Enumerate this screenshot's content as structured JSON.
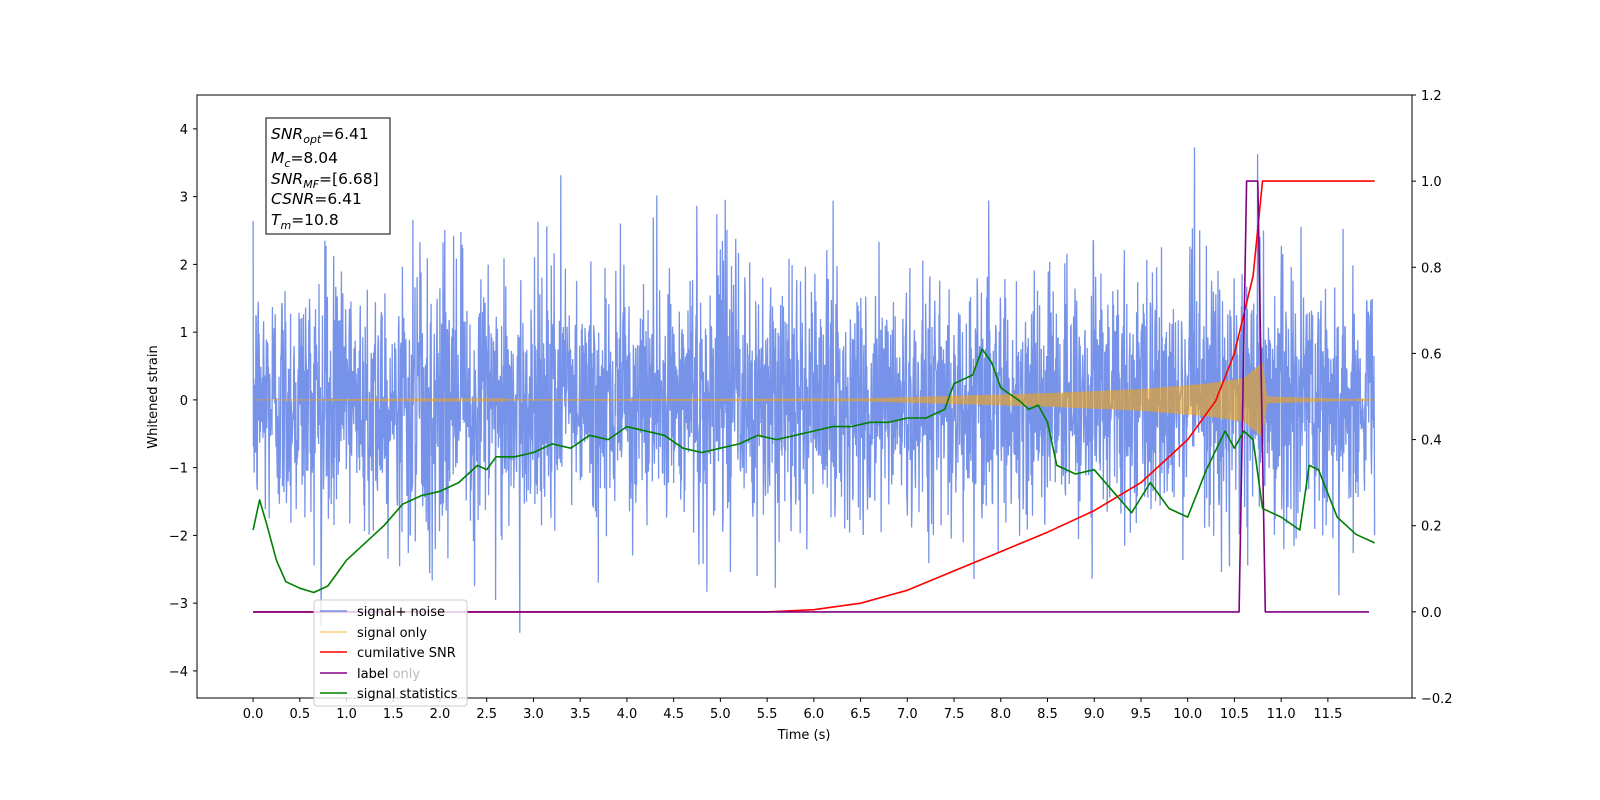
{
  "chart_data": {
    "type": "line",
    "xlabel": "Time (s)",
    "ylabel": "Whitened strain",
    "xlim": [
      -0.6,
      12.4
    ],
    "ylim": [
      -4.4,
      4.5
    ],
    "y2lim": [
      -0.2,
      1.2
    ],
    "x_ticks": [
      0.0,
      0.5,
      1.0,
      1.5,
      2.0,
      2.5,
      3.0,
      3.5,
      4.0,
      4.5,
      5.0,
      5.5,
      6.0,
      6.5,
      7.0,
      7.5,
      8.0,
      8.5,
      9.0,
      9.5,
      10.0,
      10.5,
      11.0,
      11.5
    ],
    "x_tick_labels": [
      "0.0",
      "0.5",
      "1.0",
      "1.5",
      "2.0",
      "2.5",
      "3.0",
      "3.5",
      "4.0",
      "4.5",
      "5.0",
      "5.5",
      "6.0",
      "6.5",
      "7.0",
      "7.5",
      "8.0",
      "8.5",
      "9.0",
      "9.5",
      "10.0",
      "10.5",
      "11.0",
      "11.5"
    ],
    "y_ticks": [
      -4,
      -3,
      -2,
      -1,
      0,
      1,
      2,
      3,
      4
    ],
    "y_tick_labels": [
      "−4",
      "−3",
      "−2",
      "−1",
      "0",
      "1",
      "2",
      "3",
      "4"
    ],
    "y2_ticks": [
      -0.2,
      0.0,
      0.2,
      0.4,
      0.6,
      0.8,
      1.0,
      1.2
    ],
    "y2_tick_labels": [
      "−0.2",
      "0.0",
      "0.2",
      "0.4",
      "0.6",
      "0.8",
      "1.0",
      "1.2"
    ],
    "grid": false,
    "legend_position": "bottom-left",
    "annotation_box": {
      "position": "top-left",
      "lines": [
        {
          "sym": "SNR",
          "sub": "opt",
          "rest": "=6.41"
        },
        {
          "sym": "M",
          "sub": "c",
          "rest": "=8.04"
        },
        {
          "sym": "SNR",
          "sub": "MF",
          "rest": "=[6.68]"
        },
        {
          "sym": "CSNR",
          "sub": "",
          "rest": "=6.41"
        },
        {
          "sym": "T",
          "sub": "m",
          "rest": "=10.8"
        }
      ]
    },
    "series": [
      {
        "name": "signal+ noise",
        "axis": "left",
        "color": "#4169e1",
        "style": "noise-envelope",
        "x_range": [
          0.0,
          12.0
        ],
        "approx_range": [
          -3.6,
          4.1
        ],
        "typical_std": 0.95
      },
      {
        "name": "signal only",
        "axis": "left",
        "color": "#ffa500",
        "style": "chirp",
        "x_range": [
          0.0,
          12.0
        ],
        "amplitude_points": [
          [
            0.0,
            0.0
          ],
          [
            6.5,
            0.02
          ],
          [
            7.5,
            0.06
          ],
          [
            8.5,
            0.1
          ],
          [
            9.5,
            0.16
          ],
          [
            10.2,
            0.24
          ],
          [
            10.6,
            0.32
          ],
          [
            10.8,
            0.55
          ],
          [
            10.85,
            0.05
          ],
          [
            12.0,
            0.0
          ]
        ]
      },
      {
        "name": "cumilative SNR",
        "axis": "right",
        "color": "#ff0000",
        "x": [
          0.0,
          5.5,
          6.0,
          6.5,
          7.0,
          7.5,
          8.0,
          8.5,
          9.0,
          9.5,
          10.0,
          10.3,
          10.5,
          10.7,
          10.8,
          11.0,
          11.5,
          12.0
        ],
        "values": [
          0.0,
          0.0,
          0.005,
          0.02,
          0.05,
          0.095,
          0.14,
          0.185,
          0.235,
          0.3,
          0.4,
          0.49,
          0.6,
          0.78,
          1.0,
          1.0,
          1.0,
          1.0
        ]
      },
      {
        "name": "label",
        "axis": "right",
        "color": "#800080",
        "x": [
          0.0,
          10.55,
          10.63,
          10.75,
          10.83,
          11.0,
          11.5,
          11.94
        ],
        "values": [
          0.0,
          0.0,
          1.0,
          1.0,
          0.0,
          0.0,
          0.0,
          0.0
        ]
      },
      {
        "name": "label only",
        "axis": "right",
        "color": "#800080",
        "legend_only": true,
        "x": [],
        "values": []
      },
      {
        "name": "signal statistics",
        "axis": "right",
        "color": "#008000",
        "x": [
          0.0,
          0.07,
          0.15,
          0.25,
          0.35,
          0.5,
          0.65,
          0.8,
          0.9,
          1.0,
          1.2,
          1.4,
          1.6,
          1.8,
          2.0,
          2.2,
          2.4,
          2.5,
          2.6,
          2.8,
          3.0,
          3.2,
          3.4,
          3.6,
          3.8,
          4.0,
          4.2,
          4.4,
          4.6,
          4.8,
          5.0,
          5.2,
          5.4,
          5.6,
          5.8,
          6.0,
          6.2,
          6.4,
          6.6,
          6.8,
          7.0,
          7.2,
          7.4,
          7.5,
          7.6,
          7.7,
          7.8,
          7.9,
          8.0,
          8.2,
          8.3,
          8.4,
          8.5,
          8.6,
          8.8,
          9.0,
          9.2,
          9.4,
          9.6,
          9.8,
          10.0,
          10.2,
          10.4,
          10.5,
          10.6,
          10.7,
          10.8,
          11.0,
          11.2,
          11.3,
          11.4,
          11.6,
          11.8,
          12.0
        ],
        "values": [
          0.19,
          0.26,
          0.2,
          0.12,
          0.07,
          0.055,
          0.045,
          0.06,
          0.09,
          0.12,
          0.16,
          0.2,
          0.25,
          0.27,
          0.28,
          0.3,
          0.34,
          0.33,
          0.36,
          0.36,
          0.37,
          0.39,
          0.38,
          0.41,
          0.4,
          0.43,
          0.42,
          0.41,
          0.38,
          0.37,
          0.38,
          0.39,
          0.41,
          0.4,
          0.41,
          0.42,
          0.43,
          0.43,
          0.44,
          0.44,
          0.45,
          0.45,
          0.47,
          0.53,
          0.54,
          0.55,
          0.61,
          0.58,
          0.52,
          0.49,
          0.47,
          0.48,
          0.44,
          0.34,
          0.32,
          0.33,
          0.28,
          0.23,
          0.3,
          0.24,
          0.22,
          0.33,
          0.42,
          0.38,
          0.42,
          0.4,
          0.24,
          0.22,
          0.19,
          0.34,
          0.33,
          0.22,
          0.18,
          0.16
        ]
      }
    ]
  }
}
